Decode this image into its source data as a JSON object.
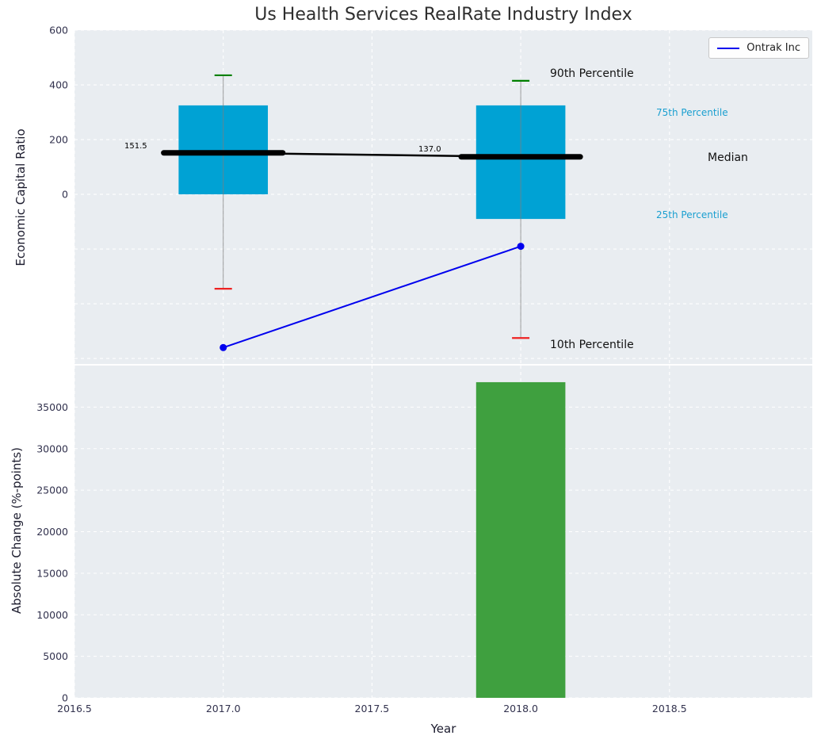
{
  "title": "Us Health Services RealRate Industry Index",
  "legend": {
    "label": "Ontrak Inc"
  },
  "annotations": {
    "p90": "90th Percentile",
    "p75": "75th Percentile",
    "median": "Median",
    "p25": "25th Percentile",
    "p10": "10th Percentile"
  },
  "colors": {
    "panel_bg": "#e9edf1",
    "grid": "#ffffff",
    "box_fill": "#00a2d4",
    "bar_fill": "#3fa03f",
    "median": "#000000",
    "whisker": "#7f7f7f",
    "cap_top": "#008000",
    "cap_bottom": "#ee2222",
    "ontrak_line": "#0000ee",
    "tick_text": "#32324e"
  },
  "chart_data": [
    {
      "type": "boxplot",
      "title": "Us Health Services RealRate Industry Index",
      "ylabel": "Economic Capital Ratio",
      "xlim": [
        2016.5,
        2018.98
      ],
      "ylim": [
        -620,
        600
      ],
      "yticks": [
        0,
        200,
        400,
        600
      ],
      "ytick_labels": [
        "0",
        "200",
        "400",
        "600"
      ],
      "grid_yticks": [
        -600,
        -400,
        -200,
        0,
        200,
        400,
        600
      ],
      "xticks": [
        2016.5,
        2017.0,
        2017.5,
        2018.0,
        2018.5
      ],
      "grid": true,
      "legend_position": "upper right",
      "box_width": 0.3,
      "median_width": 0.4,
      "boxes": [
        {
          "x": 2017,
          "p10": -345,
          "q1": 0,
          "median": 151.5,
          "q3": 325,
          "p90": 435,
          "median_label": "151.5"
        },
        {
          "x": 2018,
          "p10": -525,
          "q1": -90,
          "median": 137.0,
          "q3": 325,
          "p90": 415,
          "median_label": "137.0"
        }
      ],
      "median_trend": {
        "x": [
          2017,
          2018
        ],
        "y": [
          151.5,
          137.0
        ]
      },
      "series": [
        {
          "name": "Ontrak Inc",
          "x": [
            2017,
            2018
          ],
          "y": [
            -560,
            -190
          ]
        }
      ]
    },
    {
      "type": "bar",
      "xlabel": "Year",
      "ylabel": "Absolute Change (%-points)",
      "xlim": [
        2016.5,
        2018.98
      ],
      "ylim": [
        0,
        40000
      ],
      "yticks": [
        0,
        5000,
        10000,
        15000,
        20000,
        25000,
        30000,
        35000
      ],
      "ytick_labels": [
        "0",
        "5000",
        "10000",
        "15000",
        "20000",
        "25000",
        "30000",
        "35000"
      ],
      "xticks": [
        2016.5,
        2017.0,
        2017.5,
        2018.0,
        2018.5
      ],
      "xtick_labels": [
        "2016.5",
        "2017.0",
        "2017.5",
        "2018.0",
        "2018.5"
      ],
      "grid": true,
      "bar_width": 0.3,
      "categories": [
        2018
      ],
      "values": [
        38000
      ]
    }
  ]
}
